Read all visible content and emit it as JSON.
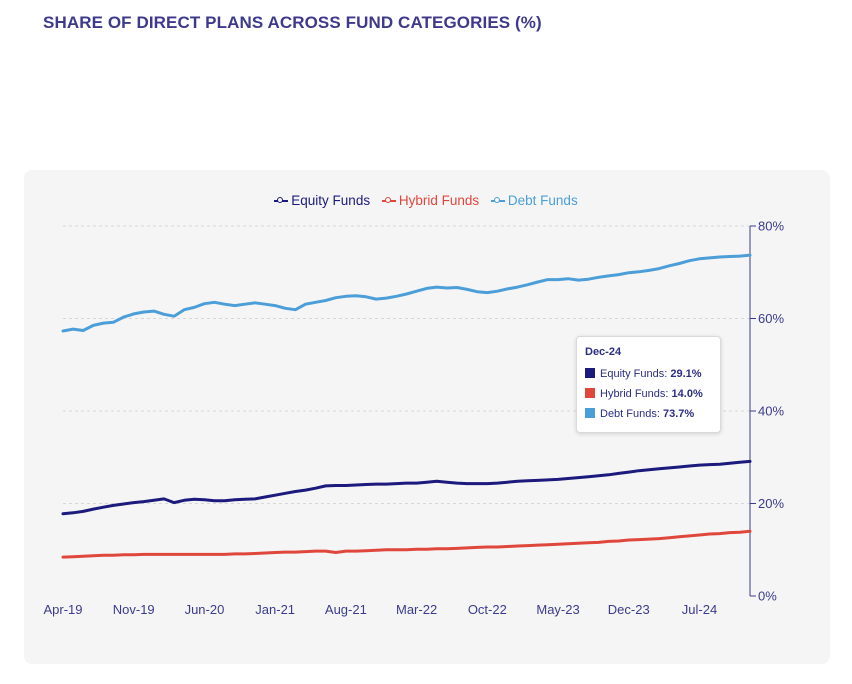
{
  "page": {
    "title": "SHARE OF DIRECT PLANS ACROSS FUND CATEGORIES (%)"
  },
  "legend": [
    {
      "name": "Equity Funds",
      "color": "#1c1a7c"
    },
    {
      "name": "Hybrid Funds",
      "color": "#e0473c"
    },
    {
      "name": "Debt Funds",
      "color": "#4c9ed8"
    }
  ],
  "tooltip": {
    "title": "Dec-24",
    "rows": [
      {
        "label": "Equity Funds:",
        "value": "29.1%",
        "color": "#1c1a7c"
      },
      {
        "label": "Hybrid Funds:",
        "value": "14.0%",
        "color": "#e0473c"
      },
      {
        "label": "Debt Funds:",
        "value": "73.7%",
        "color": "#4c9ed8"
      }
    ]
  },
  "chart_data": {
    "type": "line",
    "title": "SHARE OF DIRECT PLANS ACROSS FUND CATEGORIES (%)",
    "xlabel": "",
    "ylabel": "",
    "x_range": [
      "Apr-19",
      "Dec-24"
    ],
    "n_points": 69,
    "x_ticks": [
      {
        "label": "Apr-19",
        "index": 0
      },
      {
        "label": "Nov-19",
        "index": 7
      },
      {
        "label": "Jun-20",
        "index": 14
      },
      {
        "label": "Jan-21",
        "index": 21
      },
      {
        "label": "Aug-21",
        "index": 28
      },
      {
        "label": "Mar-22",
        "index": 35
      },
      {
        "label": "Oct-22",
        "index": 42
      },
      {
        "label": "May-23",
        "index": 49
      },
      {
        "label": "Dec-23",
        "index": 56
      },
      {
        "label": "Jul-24",
        "index": 63
      }
    ],
    "y_ticks": [
      {
        "label": "0%",
        "value": 0
      },
      {
        "label": "20%",
        "value": 20
      },
      {
        "label": "40%",
        "value": 40
      },
      {
        "label": "60%",
        "value": 60
      },
      {
        "label": "80%",
        "value": 80
      }
    ],
    "ylim": [
      0,
      80
    ],
    "y_axis_side": "right",
    "grid": true,
    "legend_position": "top-center",
    "series": [
      {
        "name": "Equity Funds",
        "color": "#1c1a7c",
        "values": [
          17.8,
          18.0,
          18.3,
          18.8,
          19.2,
          19.6,
          19.9,
          20.2,
          20.4,
          20.7,
          21.0,
          20.2,
          20.7,
          20.9,
          20.8,
          20.6,
          20.6,
          20.8,
          20.9,
          21.0,
          21.4,
          21.8,
          22.2,
          22.6,
          22.9,
          23.3,
          23.8,
          23.9,
          23.9,
          24.0,
          24.1,
          24.2,
          24.2,
          24.3,
          24.4,
          24.4,
          24.6,
          24.8,
          24.6,
          24.4,
          24.3,
          24.3,
          24.3,
          24.4,
          24.6,
          24.8,
          24.9,
          25.0,
          25.1,
          25.2,
          25.4,
          25.6,
          25.8,
          26.0,
          26.2,
          26.5,
          26.8,
          27.1,
          27.3,
          27.5,
          27.7,
          27.9,
          28.1,
          28.3,
          28.4,
          28.5,
          28.7,
          28.9,
          29.1
        ]
      },
      {
        "name": "Hybrid Funds",
        "color": "#e0473c",
        "values": [
          8.4,
          8.5,
          8.6,
          8.7,
          8.8,
          8.8,
          8.9,
          8.9,
          9.0,
          9.0,
          9.0,
          9.0,
          9.0,
          9.0,
          9.0,
          9.0,
          9.0,
          9.1,
          9.1,
          9.2,
          9.3,
          9.4,
          9.5,
          9.5,
          9.6,
          9.7,
          9.7,
          9.4,
          9.7,
          9.7,
          9.8,
          9.9,
          10.0,
          10.0,
          10.0,
          10.1,
          10.1,
          10.2,
          10.2,
          10.3,
          10.4,
          10.5,
          10.6,
          10.6,
          10.7,
          10.8,
          10.9,
          11.0,
          11.1,
          11.2,
          11.3,
          11.4,
          11.5,
          11.6,
          11.8,
          11.9,
          12.1,
          12.2,
          12.3,
          12.4,
          12.6,
          12.8,
          13.0,
          13.2,
          13.4,
          13.5,
          13.7,
          13.8,
          14.0
        ]
      },
      {
        "name": "Debt Funds",
        "color": "#4c9ed8",
        "values": [
          57.3,
          57.7,
          57.4,
          58.5,
          59.0,
          59.2,
          60.3,
          61.0,
          61.4,
          61.6,
          60.9,
          60.5,
          61.9,
          62.4,
          63.2,
          63.5,
          63.1,
          62.8,
          63.1,
          63.4,
          63.1,
          62.8,
          62.2,
          61.9,
          63.1,
          63.5,
          63.9,
          64.5,
          64.8,
          64.9,
          64.7,
          64.2,
          64.4,
          64.8,
          65.3,
          65.9,
          66.5,
          66.8,
          66.6,
          66.7,
          66.3,
          65.8,
          65.6,
          65.9,
          66.4,
          66.8,
          67.3,
          67.9,
          68.4,
          68.4,
          68.6,
          68.3,
          68.5,
          68.9,
          69.2,
          69.5,
          69.9,
          70.1,
          70.4,
          70.8,
          71.4,
          71.9,
          72.5,
          72.9,
          73.1,
          73.3,
          73.4,
          73.5,
          73.7
        ]
      }
    ]
  }
}
